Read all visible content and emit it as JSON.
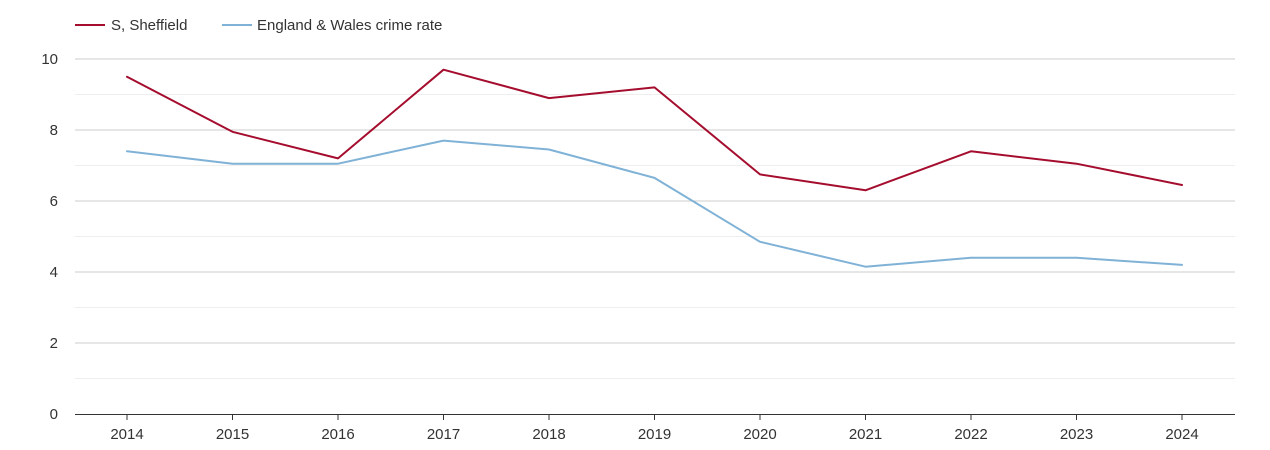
{
  "chart_data": {
    "type": "line",
    "title": "",
    "xlabel": "",
    "ylabel": "",
    "categories": [
      "2014",
      "2015",
      "2016",
      "2017",
      "2018",
      "2019",
      "2020",
      "2021",
      "2022",
      "2023",
      "2024"
    ],
    "ylim": [
      0,
      10
    ],
    "yticks": [
      "0",
      "2",
      "4",
      "6",
      "8",
      "10"
    ],
    "grid": true,
    "legend_position": "top-left",
    "series": [
      {
        "name": "S, Sheffield",
        "color": "#a50d2e",
        "values": [
          9.5,
          7.95,
          7.2,
          9.7,
          8.9,
          9.2,
          6.75,
          6.3,
          7.4,
          7.05,
          6.45
        ]
      },
      {
        "name": "England & Wales crime rate",
        "color": "#7fb2d6",
        "values": [
          7.4,
          7.05,
          7.05,
          7.7,
          7.45,
          6.65,
          4.85,
          4.15,
          4.4,
          4.4,
          4.2
        ]
      }
    ]
  }
}
